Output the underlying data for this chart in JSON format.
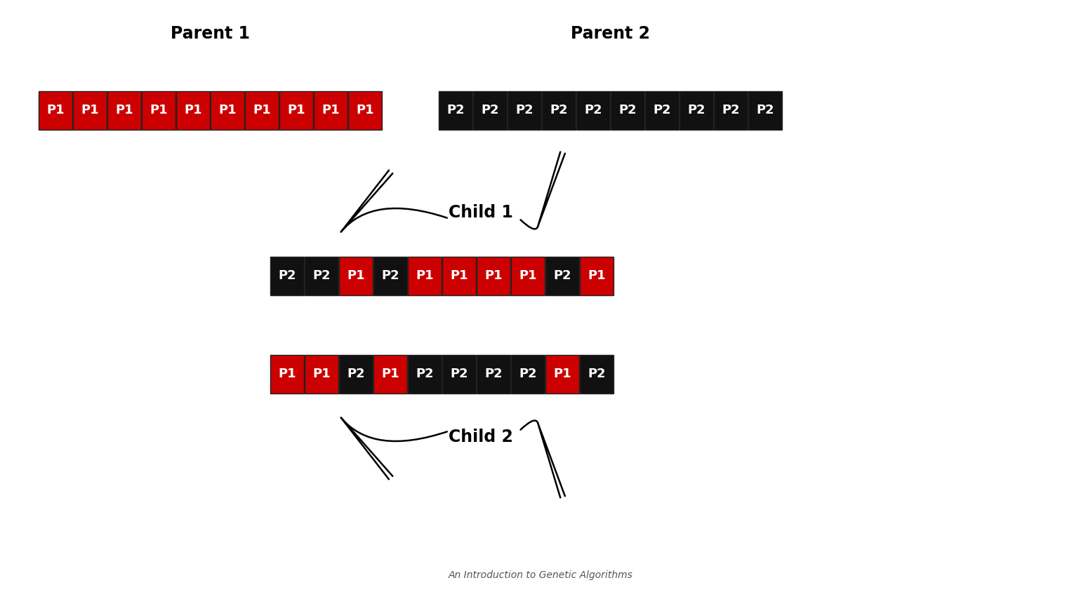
{
  "background_color": "#ffffff",
  "parent1_label": "Parent 1",
  "parent2_label": "Parent 2",
  "child1_label": "Child 1",
  "child2_label": "Child 2",
  "n_genes": 10,
  "parent1_colors": [
    "#cc0000",
    "#cc0000",
    "#cc0000",
    "#cc0000",
    "#cc0000",
    "#cc0000",
    "#cc0000",
    "#cc0000",
    "#cc0000",
    "#cc0000"
  ],
  "parent2_colors": [
    "#111111",
    "#111111",
    "#111111",
    "#111111",
    "#111111",
    "#111111",
    "#111111",
    "#111111",
    "#111111",
    "#111111"
  ],
  "child1_colors": [
    "#111111",
    "#111111",
    "#cc0000",
    "#111111",
    "#cc0000",
    "#cc0000",
    "#cc0000",
    "#cc0000",
    "#111111",
    "#cc0000"
  ],
  "child2_colors": [
    "#cc0000",
    "#cc0000",
    "#111111",
    "#cc0000",
    "#111111",
    "#111111",
    "#111111",
    "#111111",
    "#cc0000",
    "#111111"
  ],
  "parent1_labels": [
    "P1",
    "P1",
    "P1",
    "P1",
    "P1",
    "P1",
    "P1",
    "P1",
    "P1",
    "P1"
  ],
  "parent2_labels": [
    "P2",
    "P2",
    "P2",
    "P2",
    "P2",
    "P2",
    "P2",
    "P2",
    "P2",
    "P2"
  ],
  "child1_labels": [
    "P2",
    "P2",
    "P1",
    "P2",
    "P1",
    "P1",
    "P1",
    "P1",
    "P2",
    "P1"
  ],
  "child2_labels": [
    "P1",
    "P1",
    "P2",
    "P1",
    "P2",
    "P2",
    "P2",
    "P2",
    "P1",
    "P2"
  ],
  "subtitle": "An Introduction to Genetic Algorithms",
  "label_fontsize": 17,
  "gene_fontsize": 13,
  "subtitle_fontsize": 10
}
